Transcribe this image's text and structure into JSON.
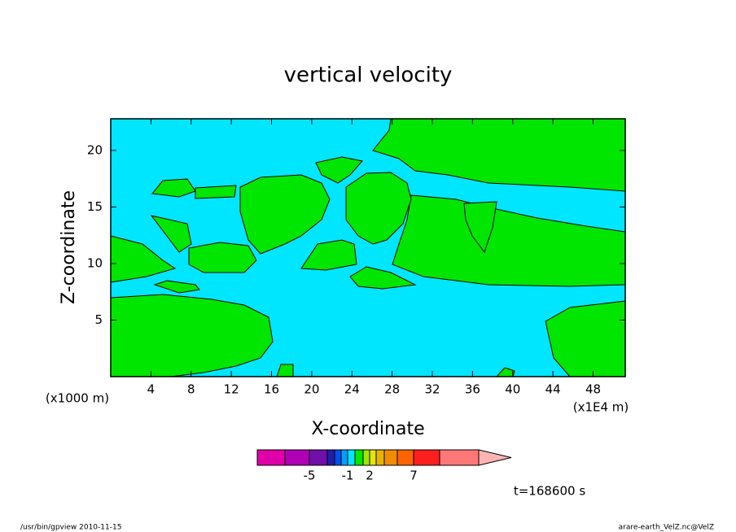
{
  "chart_data": {
    "type": "contour",
    "title": "vertical velocity",
    "x_label": "X-coordinate",
    "y_label": "Z-coordinate",
    "x_unit_left": "(x1000 m)",
    "x_unit_right": "(x1E4 m)",
    "xlim": [
      0,
      51.2
    ],
    "xticks": [
      4,
      8,
      12,
      16,
      20,
      24,
      28,
      32,
      36,
      40,
      44,
      48
    ],
    "ylim": [
      0,
      22.8
    ],
    "yticks": [
      5,
      10,
      15,
      20
    ],
    "colorbar": {
      "colors": [
        "#e000a8",
        "#b000b4",
        "#7010a8",
        "#1e1ea8",
        "#0050f0",
        "#00a0ff",
        "#00e6ff",
        "#00e600",
        "#a0e600",
        "#e6e600",
        "#e6b400",
        "#f08c00",
        "#ff6400",
        "#ff1e1e",
        "#ff7878",
        "#ffb4b4"
      ],
      "levels": [
        -10,
        -5,
        -3,
        -2,
        -1.5,
        -1,
        0,
        1,
        2,
        3,
        4,
        5,
        7,
        10,
        20
      ],
      "ticks": [
        -5,
        -1,
        2,
        7
      ]
    },
    "background_level": 6,
    "region_level": 7,
    "time_label": "t=168600 s",
    "footer_left": "/usr/bin/gpview  2010-11-15",
    "footer_right": "arare-earth_VelZ.nc@VelZ"
  }
}
